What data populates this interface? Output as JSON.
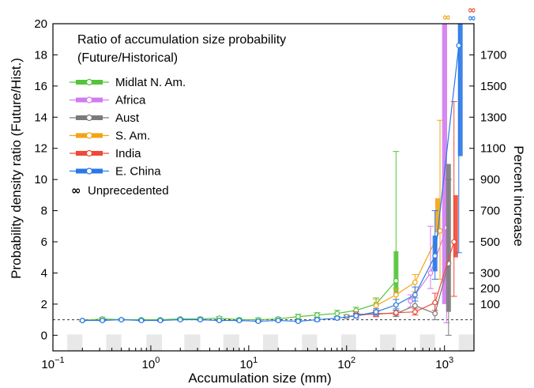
{
  "chart_data": {
    "type": "line",
    "legend_title": "Ratio of accumulation size probability (Future/Historical)",
    "legend_title_lines": [
      "Ratio of accumulation size probability",
      "(Future/Historical)"
    ],
    "xlabel": "Accumulation size (mm)",
    "ylabel": "Probability density ratio (Future/Hist.)",
    "ylabel_right": "Percent increase",
    "xscale": "log",
    "xlim": [
      0.1,
      2000
    ],
    "ylim": [
      -1,
      20
    ],
    "x_ticks": [
      {
        "value": 0.1,
        "base": "10",
        "exp": "−1"
      },
      {
        "value": 1,
        "base": "10",
        "exp": "0"
      },
      {
        "value": 10,
        "base": "10",
        "exp": "1"
      },
      {
        "value": 100,
        "base": "10",
        "exp": "2"
      },
      {
        "value": 1000,
        "base": "10",
        "exp": "3"
      }
    ],
    "y_ticks": [
      0,
      2,
      4,
      6,
      8,
      10,
      12,
      14,
      16,
      18,
      20
    ],
    "right_ticks": [
      {
        "label": "100",
        "ratio": 2
      },
      {
        "label": "200",
        "ratio": 3
      },
      {
        "label": "300",
        "ratio": 4
      },
      {
        "label": "500",
        "ratio": 6
      },
      {
        "label": "700",
        "ratio": 8
      },
      {
        "label": "900",
        "ratio": 10
      },
      {
        "label": "1100",
        "ratio": 12
      },
      {
        "label": "1300",
        "ratio": 14
      },
      {
        "label": "1500",
        "ratio": 16
      },
      {
        "label": "1700",
        "ratio": 18
      }
    ],
    "reference_line": 1,
    "unprecedented_label": "Unprecedented",
    "unprecedented_symbol": "∞",
    "bin_shading": [
      [
        0.14,
        0.2
      ],
      [
        0.35,
        0.5
      ],
      [
        0.9,
        1.3
      ],
      [
        2.2,
        3.2
      ],
      [
        5.5,
        8
      ],
      [
        14,
        20
      ],
      [
        35,
        50
      ],
      [
        88,
        125
      ],
      [
        220,
        320
      ],
      [
        560,
        800
      ],
      [
        1400,
        2000
      ]
    ],
    "series": [
      {
        "name": "Midlat N. Am.",
        "color": "#55c43a",
        "x": [
          0.2,
          0.32,
          0.5,
          0.8,
          1.25,
          2,
          3.2,
          5,
          8,
          12.5,
          20,
          32,
          50,
          80,
          125,
          200,
          320
        ],
        "y": [
          0.95,
          1.05,
          1.0,
          1.0,
          1.0,
          1.05,
          1.05,
          1.1,
          1.0,
          1.0,
          1.05,
          1.2,
          1.3,
          1.4,
          1.6,
          2.0,
          3.5
        ],
        "err_low": [
          0.9,
          0.95,
          0.95,
          0.95,
          0.95,
          0.95,
          0.95,
          1.0,
          0.9,
          0.9,
          0.95,
          1.05,
          1.15,
          1.2,
          1.35,
          1.6,
          2.0
        ],
        "err_high": [
          1.0,
          1.15,
          1.05,
          1.05,
          1.05,
          1.1,
          1.15,
          1.2,
          1.1,
          1.1,
          1.15,
          1.35,
          1.45,
          1.6,
          1.8,
          2.4,
          11.8
        ],
        "box": {
          "x": 320,
          "low": 2.6,
          "high": 5.4
        },
        "unprecedented": false
      },
      {
        "name": "Africa",
        "color": "#d27bf0",
        "x": [
          450,
          720,
          1050
        ],
        "y": [
          2.2,
          4.0,
          6.9
        ],
        "err_low": [
          1.8,
          3.0,
          0.8
        ],
        "err_high": [
          2.6,
          7.0,
          20.0
        ],
        "box": {
          "x": 1000,
          "low": 2.0,
          "high": 20.0
        },
        "unprecedented": true
      },
      {
        "name": "Aust",
        "color": "#7a7a7a",
        "x": [
          100,
          200,
          320,
          500,
          800,
          1100
        ],
        "y": [
          1.2,
          1.4,
          1.4,
          1.9,
          1.4,
          4.6
        ],
        "err_low": [
          1.1,
          1.2,
          1.2,
          1.5,
          1.0,
          0.0
        ],
        "err_high": [
          1.3,
          1.6,
          1.7,
          2.4,
          2.0,
          10.0
        ],
        "box": {
          "x": 1100,
          "low": 1.5,
          "high": 11.0
        },
        "unprecedented": false
      },
      {
        "name": "S. Am.",
        "color": "#f4a313",
        "x": [
          200,
          320,
          500,
          900
        ],
        "y": [
          1.9,
          2.6,
          3.4,
          6.7
        ],
        "err_low": [
          1.6,
          2.3,
          2.8,
          3.6
        ],
        "err_high": [
          2.3,
          3.0,
          3.9,
          13.8
        ],
        "box": {
          "x": 850,
          "low": 6.6,
          "high": 8.8
        },
        "unprecedented": true
      },
      {
        "name": "India",
        "color": "#ef4a37",
        "x": [
          125,
          200,
          320,
          500,
          800,
          1250
        ],
        "y": [
          1.35,
          1.35,
          1.45,
          1.5,
          2.1,
          6.0
        ],
        "err_low": [
          1.2,
          1.2,
          1.3,
          1.3,
          1.6,
          2.5
        ],
        "err_high": [
          1.5,
          1.5,
          1.6,
          1.7,
          2.7,
          15.0
        ],
        "box": {
          "x": 1300,
          "low": 5.0,
          "high": 9.0
        },
        "unprecedented": true
      },
      {
        "name": "E. China",
        "color": "#2a78e6",
        "x": [
          0.2,
          0.32,
          0.5,
          0.8,
          1.25,
          2,
          3.2,
          5,
          8,
          12.5,
          20,
          32,
          50,
          80,
          125,
          200,
          320,
          500,
          800,
          1400
        ],
        "y": [
          0.95,
          0.95,
          1.0,
          0.95,
          0.95,
          1.0,
          1.0,
          0.95,
          0.95,
          0.9,
          0.95,
          0.9,
          1.0,
          1.1,
          1.25,
          1.5,
          1.95,
          2.6,
          5.1,
          18.6
        ],
        "err_low": [
          0.9,
          0.9,
          0.95,
          0.9,
          0.9,
          0.95,
          0.95,
          0.9,
          0.9,
          0.85,
          0.9,
          0.85,
          0.9,
          1.0,
          1.1,
          1.3,
          1.6,
          2.2,
          3.6,
          5.3
        ],
        "err_high": [
          1.0,
          1.0,
          1.05,
          1.0,
          1.0,
          1.05,
          1.05,
          1.0,
          1.0,
          0.95,
          1.0,
          0.95,
          1.1,
          1.2,
          1.4,
          1.7,
          2.3,
          3.1,
          8.0,
          20.0
        ],
        "box": {
          "x": 1450,
          "low": 11.5,
          "high": 20.0
        },
        "box2": {
          "x": 800,
          "low": 4.1,
          "high": 6.4
        },
        "unprecedented": true
      }
    ]
  }
}
